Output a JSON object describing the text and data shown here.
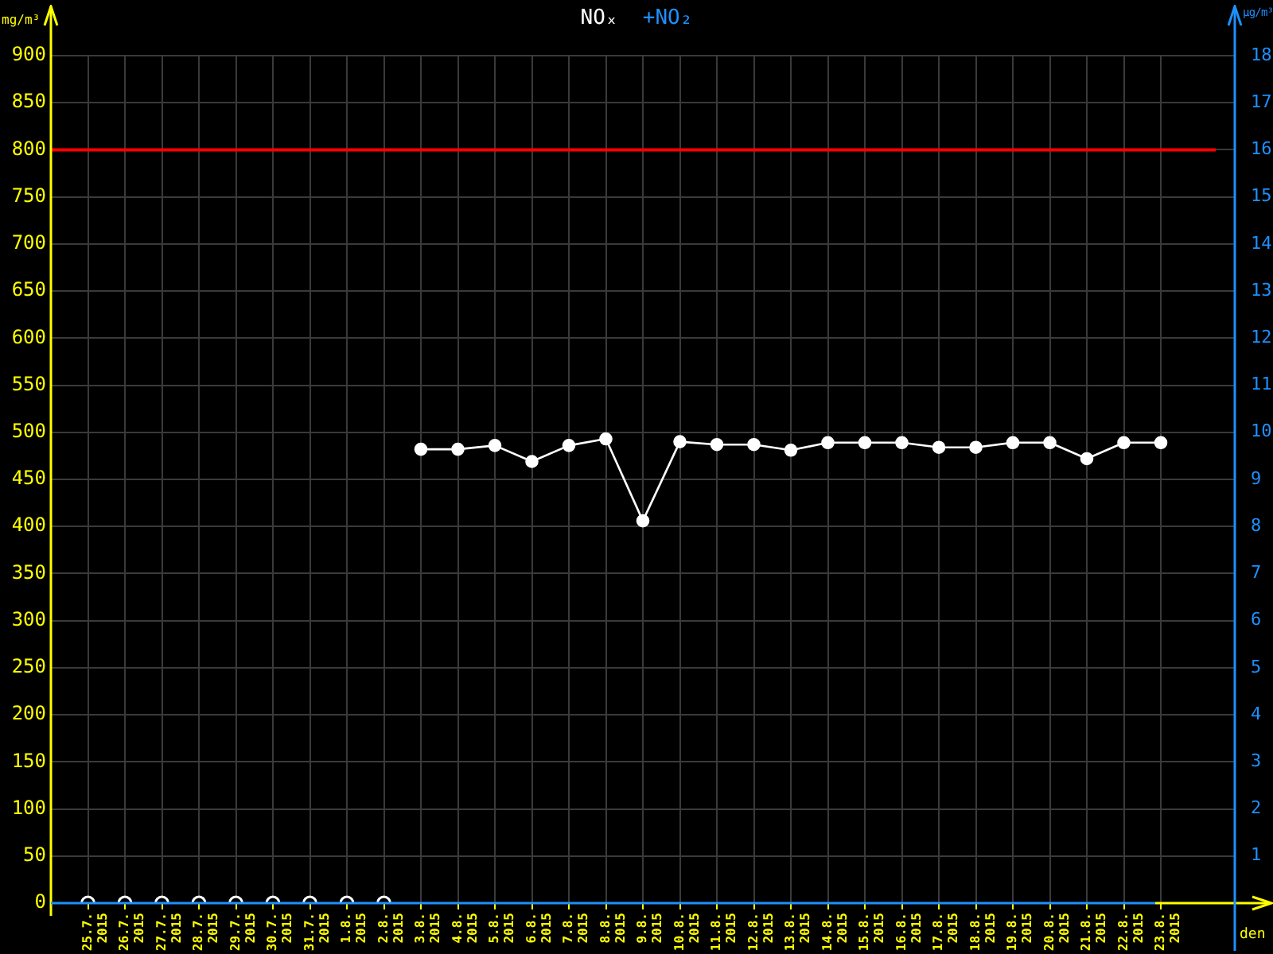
{
  "chart_data": {
    "type": "line",
    "title": "NOₓ",
    "subtitle": "+NO₂",
    "ylabel": "mg/m³",
    "y2label": "µg/m³",
    "xlabel": "den",
    "categories": [
      "25.7.\n2015",
      "26.7.\n2015",
      "27.7.\n2015",
      "28.7.\n2015",
      "29.7.\n2015",
      "30.7.\n2015",
      "31.7.\n2015",
      "1.8.\n2015",
      "2.8.\n2015",
      "3.8.\n2015",
      "4.8.\n2015",
      "5.8.\n2015",
      "6.8.\n2015",
      "7.8.\n2015",
      "8.8.\n2015",
      "9.8.\n2015",
      "10.8.\n2015",
      "11.8.\n2015",
      "12.8.\n2015",
      "13.8.\n2015",
      "14.8.\n2015",
      "15.8.\n2015",
      "16.8.\n2015",
      "17.8.\n2015",
      "18.8.\n2015",
      "19.8.\n2015",
      "20.8.\n2015",
      "21.8.\n2015",
      "22.8.\n2015",
      "23.8.\n2015"
    ],
    "series": [
      {
        "color": "#ffffff",
        "values": [
          null,
          null,
          null,
          null,
          null,
          null,
          null,
          null,
          null,
          482,
          482,
          486,
          469,
          486,
          493,
          406,
          490,
          487,
          487,
          481,
          489,
          489,
          489,
          484,
          484,
          489,
          489,
          472,
          489,
          489
        ]
      },
      {
        "type": "scatter",
        "color": "#ffffff",
        "values": [
          0,
          0,
          0,
          0,
          0,
          0,
          0,
          0,
          0,
          null,
          null,
          null,
          null,
          null,
          null,
          null,
          null,
          null,
          null,
          null,
          null,
          null,
          null,
          null,
          null,
          null,
          null,
          null,
          null,
          null
        ]
      }
    ],
    "ylim": [
      0,
      900
    ],
    "yticks": [
      0,
      50,
      100,
      150,
      200,
      250,
      300,
      350,
      400,
      450,
      500,
      550,
      600,
      650,
      700,
      750,
      800,
      850,
      900
    ],
    "y2lim": [
      0,
      18
    ],
    "y2ticks": [
      1,
      2,
      3,
      4,
      5,
      6,
      7,
      8,
      9,
      10,
      11,
      12,
      13,
      14,
      15,
      16,
      17,
      18
    ],
    "ref_lines": [
      {
        "axis": "y",
        "value": 800,
        "color": "#ff0000"
      }
    ],
    "grid": true,
    "legend": false,
    "marker": "circle",
    "line_style": "solid"
  }
}
